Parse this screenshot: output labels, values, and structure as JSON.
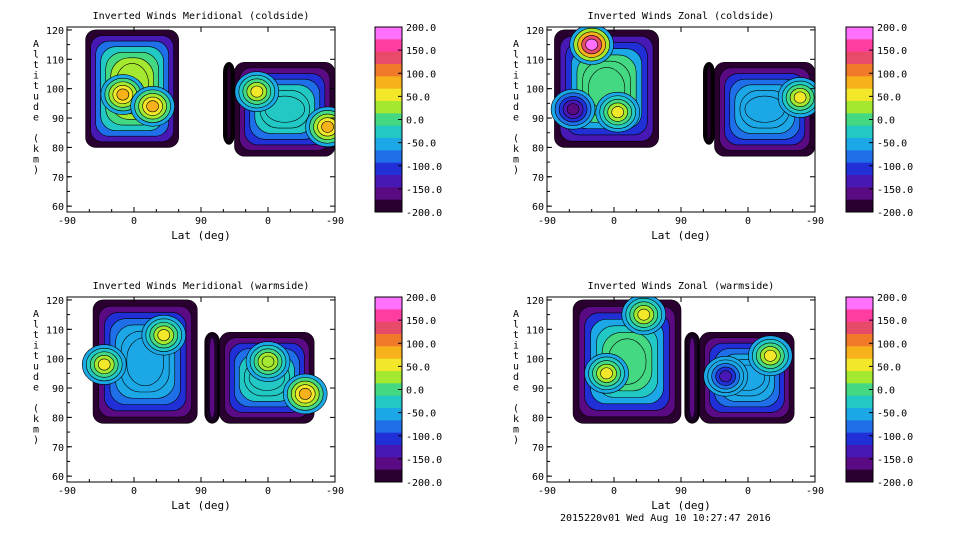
{
  "footer": "2015220v01 Wed Aug 10 10:27:47 2016",
  "colorbar": {
    "levels": [
      "200.0",
      "150.0",
      "100.0",
      "50.0",
      "0.0",
      "-50.0",
      "-100.0",
      "-150.0",
      "-200.0"
    ],
    "range": [
      -200,
      200
    ],
    "colors": [
      "#ff70ff",
      "#ff3da0",
      "#e84a6a",
      "#f07a2a",
      "#f7b21b",
      "#f3e72a",
      "#a5e830",
      "#45d882",
      "#22c8c4",
      "#1ca8e6",
      "#1f6fe8",
      "#2030d6",
      "#4818b4",
      "#5a0a82",
      "#2a0030"
    ]
  },
  "icons": [
    "contour-plot"
  ],
  "chart_data": [
    {
      "type": "contour",
      "title": "Inverted Winds Meridional (coldside)",
      "xlabel": "Lat (deg)",
      "ylabel": "Altitude (km)",
      "xticks": [
        "-90",
        "0",
        "90",
        "0",
        "-90"
      ],
      "yticks": [
        "60",
        "70",
        "80",
        "90",
        "100",
        "110",
        "120"
      ],
      "ylim": [
        58,
        121
      ],
      "blobs": [
        {
          "lat_range": [
            -65,
            60
          ],
          "alt_range": [
            80,
            120
          ],
          "value": 20
        },
        {
          "lat_range": [
            120,
            135
          ],
          "alt_range": [
            81,
            109
          ],
          "value": -200
        },
        {
          "lat_range": [
            135,
            270
          ],
          "alt_range": [
            77,
            109
          ],
          "value": -20
        }
      ],
      "peaks": [
        {
          "lat": -15,
          "alt": 98,
          "value": 70
        },
        {
          "lat": 25,
          "alt": 94,
          "value": 90
        },
        {
          "lat": 165,
          "alt": 99,
          "value": 60
        },
        {
          "lat": 260,
          "alt": 87,
          "value": 80
        }
      ]
    },
    {
      "type": "contour",
      "title": "Inverted Winds Zonal (coldside)",
      "xlabel": "Lat (deg)",
      "ylabel": "Altitude (km)",
      "xticks": [
        "-90",
        "0",
        "90",
        "0",
        "-90"
      ],
      "yticks": [
        "60",
        "70",
        "80",
        "90",
        "100",
        "110",
        "120"
      ],
      "ylim": [
        58,
        121
      ],
      "blobs": [
        {
          "lat_range": [
            -80,
            60
          ],
          "alt_range": [
            80,
            120
          ],
          "value": 0
        },
        {
          "lat_range": [
            120,
            135
          ],
          "alt_range": [
            81,
            109
          ],
          "value": -200
        },
        {
          "lat_range": [
            135,
            270
          ],
          "alt_range": [
            77,
            109
          ],
          "value": -40
        }
      ],
      "peaks": [
        {
          "lat": -30,
          "alt": 115,
          "value": 190
        },
        {
          "lat": -55,
          "alt": 93,
          "value": -150
        },
        {
          "lat": 5,
          "alt": 92,
          "value": 50
        },
        {
          "lat": 250,
          "alt": 97,
          "value": 60
        }
      ]
    },
    {
      "type": "contour",
      "title": "Inverted Winds Meridional (warmside)",
      "xlabel": "Lat (deg)",
      "ylabel": "Altitude (km)",
      "xticks": [
        "-90",
        "0",
        "90",
        "0",
        "-90"
      ],
      "yticks": [
        "60",
        "70",
        "80",
        "90",
        "100",
        "110",
        "120"
      ],
      "ylim": [
        58,
        121
      ],
      "blobs": [
        {
          "lat_range": [
            -55,
            85
          ],
          "alt_range": [
            78,
            120
          ],
          "value": -40
        },
        {
          "lat_range": [
            95,
            115
          ],
          "alt_range": [
            78,
            109
          ],
          "value": -150
        },
        {
          "lat_range": [
            115,
            242
          ],
          "alt_range": [
            78,
            109
          ],
          "value": -20
        }
      ],
      "peaks": [
        {
          "lat": -40,
          "alt": 98,
          "value": 60
        },
        {
          "lat": 40,
          "alt": 108,
          "value": 50
        },
        {
          "lat": 180,
          "alt": 99,
          "value": 40
        },
        {
          "lat": 230,
          "alt": 88,
          "value": 70
        }
      ]
    },
    {
      "type": "contour",
      "title": "Inverted Winds Zonal (warmside)",
      "xlabel": "Lat (deg)",
      "ylabel": "Altitude (km)",
      "xticks": [
        "-90",
        "0",
        "90",
        "0",
        "-90"
      ],
      "yticks": [
        "60",
        "70",
        "80",
        "90",
        "100",
        "110",
        "120"
      ],
      "ylim": [
        58,
        121
      ],
      "blobs": [
        {
          "lat_range": [
            -55,
            90
          ],
          "alt_range": [
            78,
            120
          ],
          "value": -10
        },
        {
          "lat_range": [
            95,
            115
          ],
          "alt_range": [
            78,
            109
          ],
          "value": -150
        },
        {
          "lat_range": [
            115,
            242
          ],
          "alt_range": [
            78,
            109
          ],
          "value": -40
        }
      ],
      "peaks": [
        {
          "lat": -10,
          "alt": 95,
          "value": 60
        },
        {
          "lat": 40,
          "alt": 115,
          "value": 60
        },
        {
          "lat": 210,
          "alt": 101,
          "value": 60
        },
        {
          "lat": 150,
          "alt": 94,
          "value": -120
        }
      ]
    }
  ]
}
